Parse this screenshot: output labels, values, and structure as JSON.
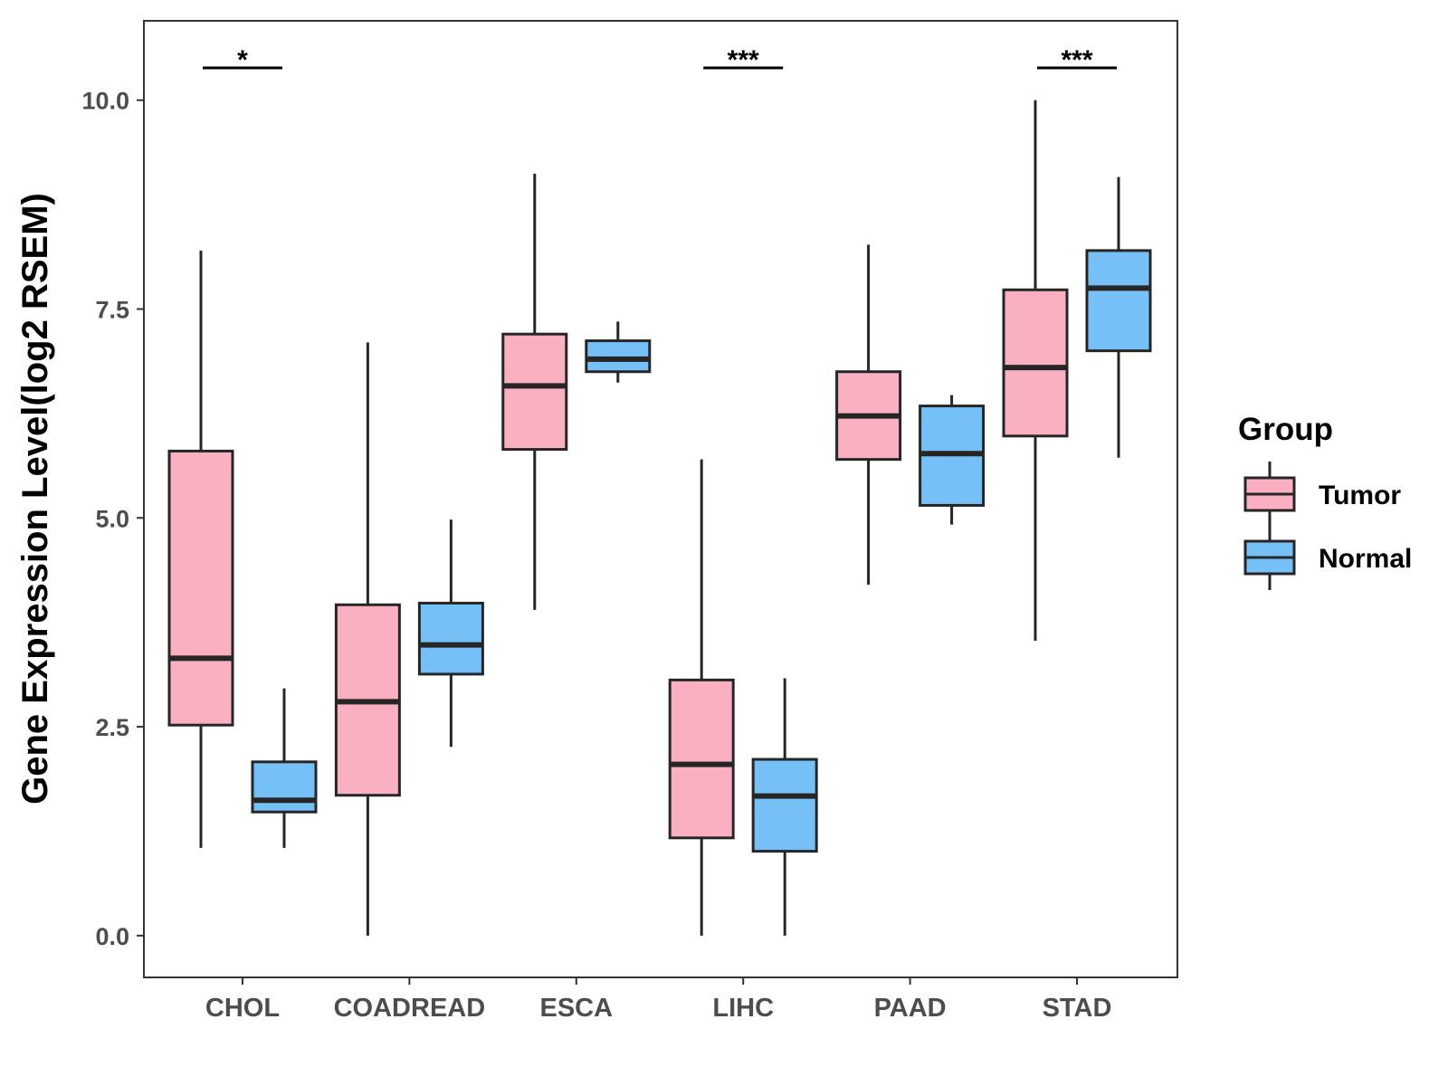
{
  "chart_data": {
    "type": "boxplot",
    "title": "",
    "xlabel": "",
    "ylabel": "Gene Expression Level(log2 RSEM)",
    "ylim": [
      -0.5,
      10.95
    ],
    "yticks": [
      0.0,
      2.5,
      5.0,
      7.5,
      10.0
    ],
    "ytick_labels": [
      "0.0",
      "2.5",
      "5.0",
      "7.5",
      "10.0"
    ],
    "categories": [
      "CHOL",
      "COADREAD",
      "ESCA",
      "LIHC",
      "PAAD",
      "STAD"
    ],
    "grid": false,
    "legend": {
      "title": "Group",
      "position": "right",
      "entries": [
        "Tumor",
        "Normal"
      ]
    },
    "series": [
      {
        "name": "Tumor",
        "color": "#FBB0C2",
        "boxes": [
          {
            "category": "CHOL",
            "min": 1.05,
            "q1": 2.52,
            "median": 3.32,
            "q3": 5.8,
            "max": 8.2
          },
          {
            "category": "COADREAD",
            "min": 0.0,
            "q1": 1.68,
            "median": 2.8,
            "q3": 3.96,
            "max": 7.1
          },
          {
            "category": "ESCA",
            "min": 3.9,
            "q1": 5.82,
            "median": 6.58,
            "q3": 7.2,
            "max": 9.12
          },
          {
            "category": "LIHC",
            "min": 0.0,
            "q1": 1.17,
            "median": 2.05,
            "q3": 3.06,
            "max": 5.7
          },
          {
            "category": "PAAD",
            "min": 4.2,
            "q1": 5.7,
            "median": 6.22,
            "q3": 6.75,
            "max": 8.27
          },
          {
            "category": "STAD",
            "min": 3.53,
            "q1": 5.98,
            "median": 6.8,
            "q3": 7.73,
            "max": 10.0
          }
        ]
      },
      {
        "name": "Normal",
        "color": "#75C0F7",
        "boxes": [
          {
            "category": "CHOL",
            "min": 1.05,
            "q1": 1.48,
            "median": 1.62,
            "q3": 2.08,
            "max": 2.96
          },
          {
            "category": "COADREAD",
            "min": 2.26,
            "q1": 3.13,
            "median": 3.48,
            "q3": 3.98,
            "max": 4.98
          },
          {
            "category": "ESCA",
            "min": 6.62,
            "q1": 6.75,
            "median": 6.9,
            "q3": 7.12,
            "max": 7.35
          },
          {
            "category": "LIHC",
            "min": 0.0,
            "q1": 1.01,
            "median": 1.67,
            "q3": 2.11,
            "max": 3.08
          },
          {
            "category": "PAAD",
            "min": 4.92,
            "q1": 5.15,
            "median": 5.77,
            "q3": 6.34,
            "max": 6.47
          },
          {
            "category": "STAD",
            "min": 5.72,
            "q1": 7.0,
            "median": 7.75,
            "q3": 8.2,
            "max": 9.08
          }
        ]
      }
    ],
    "annotations": [
      {
        "category": "CHOL",
        "label": "*"
      },
      {
        "category": "LIHC",
        "label": "***"
      },
      {
        "category": "STAD",
        "label": "***"
      }
    ]
  }
}
